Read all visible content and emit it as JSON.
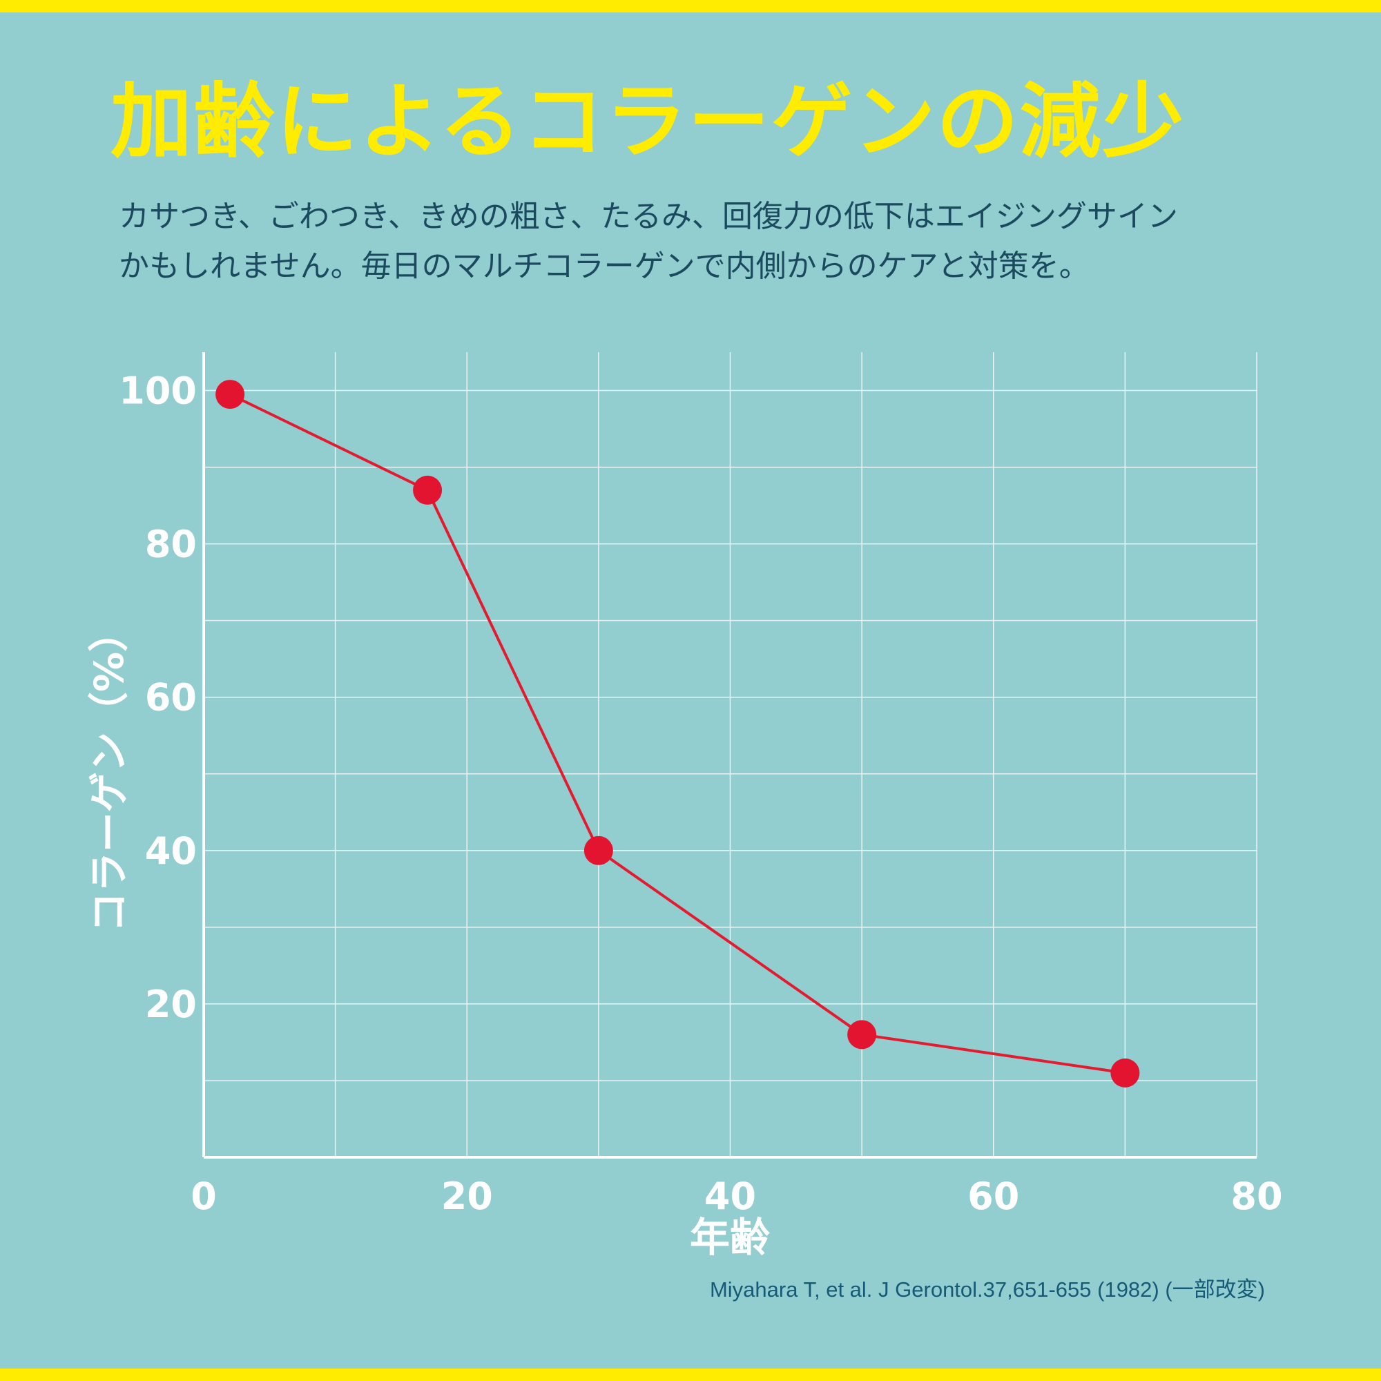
{
  "title": "加齢によるコラーゲンの減少",
  "subtitle_lines": [
    "カサつき、ごわつき、きめの粗さ、たるみ、回復力の低下はエイジングサイン",
    "かもしれません。毎日のマルチコラーゲンで内側からのケアと対策を。"
  ],
  "source": "Miyahara T, et al. J Gerontol.37,651-655 (1982) (一部改変)",
  "chart_data": {
    "type": "line",
    "xlabel": "年齢",
    "ylabel": "コラーゲン（%）",
    "xlim": [
      0,
      80
    ],
    "ylim": [
      0,
      105
    ],
    "xticks": [
      0,
      20,
      40,
      60,
      80
    ],
    "yticks": [
      20,
      40,
      60,
      80,
      100
    ],
    "grid": true,
    "series": [
      {
        "x": [
          2,
          17,
          30,
          50,
          70
        ],
        "y": [
          99.5,
          87,
          40,
          16,
          11
        ]
      }
    ],
    "colors": {
      "line": "#e31b2f",
      "marker": "#e3142f",
      "grid": "#e8f4f4",
      "axis": "#ffffff",
      "ticklabel": "#ffffff"
    }
  }
}
